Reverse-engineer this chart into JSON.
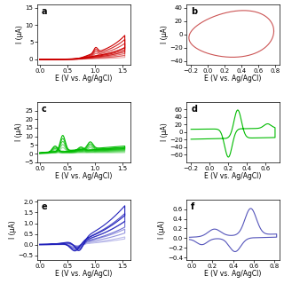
{
  "panels": [
    {
      "label": "a",
      "color": "#cc0000",
      "xlim": [
        -0.05,
        1.65
      ],
      "ylim": [
        -1.5,
        16
      ],
      "xticks": [
        0.0,
        0.5,
        1.0,
        1.5
      ],
      "yticks": [
        0,
        5,
        10,
        15
      ],
      "xlabel": "E (V vs. Ag/AgCl)",
      "ylabel": "I (μA)",
      "n_scans": 6
    },
    {
      "label": "b",
      "color": "#cc5555",
      "xlim": [
        -0.25,
        0.85
      ],
      "ylim": [
        -45,
        45
      ],
      "xticks": [
        -0.2,
        0.0,
        0.2,
        0.4,
        0.6,
        0.8
      ],
      "yticks": [
        -40,
        -20,
        0,
        20,
        40
      ],
      "xlabel": "E (V vs. Ag/AgCl)",
      "ylabel": "I (μA)"
    },
    {
      "label": "c",
      "color": "#00bb00",
      "xlim": [
        -0.05,
        1.65
      ],
      "ylim": [
        -5,
        30
      ],
      "xticks": [
        0.0,
        0.5,
        1.0,
        1.5
      ],
      "yticks": [
        -5,
        0,
        5,
        10,
        15,
        20,
        25
      ],
      "xlabel": "E (V vs. Ag/AgCl)",
      "ylabel": "I (μA)",
      "n_scans": 6
    },
    {
      "label": "d",
      "color": "#00bb00",
      "xlim": [
        -0.25,
        0.75
      ],
      "ylim": [
        -80,
        80
      ],
      "xticks": [
        -0.2,
        0.0,
        0.2,
        0.4,
        0.6
      ],
      "yticks": [
        -60,
        -40,
        -20,
        0,
        20,
        40,
        60
      ],
      "xlabel": "E (V vs. Ag/AgCl)",
      "ylabel": "I (μA)"
    },
    {
      "label": "e",
      "color": "#2222bb",
      "xlim": [
        -0.05,
        1.65
      ],
      "ylim": [
        -0.7,
        2.1
      ],
      "xticks": [
        0.0,
        0.5,
        1.0,
        1.5
      ],
      "yticks": [
        -0.5,
        0.0,
        0.5,
        1.0,
        1.5,
        2.0
      ],
      "xlabel": "E (V vs. Ag/AgCl)",
      "ylabel": "I (μA)",
      "n_scans": 5
    },
    {
      "label": "f",
      "color": "#5555bb",
      "xlim": [
        -0.05,
        0.85
      ],
      "ylim": [
        -0.45,
        0.8
      ],
      "xticks": [
        0.0,
        0.2,
        0.4,
        0.6,
        0.8
      ],
      "yticks": [
        -0.4,
        -0.2,
        0.0,
        0.2,
        0.4,
        0.6
      ],
      "xlabel": "E (V vs. Ag/AgCl)",
      "ylabel": "I (μA)"
    }
  ],
  "background_color": "#ffffff",
  "tick_fontsize": 5,
  "label_fontsize": 5.5,
  "panel_label_fontsize": 7,
  "linewidth": 0.8
}
